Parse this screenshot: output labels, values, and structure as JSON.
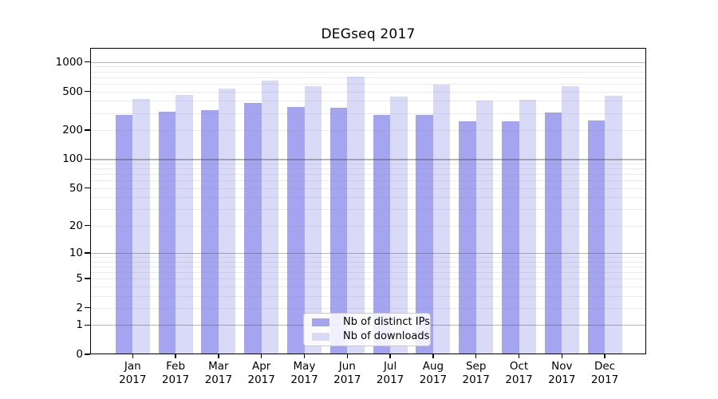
{
  "chart_data": {
    "type": "bar",
    "title": "DEGseq 2017",
    "categories": [
      "Jan",
      "Feb",
      "Mar",
      "Apr",
      "May",
      "Jun",
      "Jul",
      "Aug",
      "Sep",
      "Oct",
      "Nov",
      "Dec"
    ],
    "year_label": "2017",
    "series": [
      {
        "name": "Nb of distinct IPs",
        "color": "#a4a4f1",
        "values": [
          285,
          308,
          318,
          380,
          345,
          341,
          286,
          289,
          248,
          245,
          303,
          251
        ]
      },
      {
        "name": "Nb of downloads",
        "color": "#d9d9f8",
        "values": [
          420,
          462,
          537,
          645,
          568,
          708,
          439,
          585,
          401,
          409,
          566,
          450
        ]
      }
    ],
    "yscale": "log1p",
    "yticks": [
      0,
      1,
      2,
      5,
      10,
      20,
      50,
      100,
      200,
      500,
      1000
    ],
    "ylim": [
      0,
      1400
    ],
    "xlabel": "",
    "ylabel": "",
    "grid": true,
    "legend_position": "lower center"
  },
  "colors": {
    "background": "#ffffff",
    "bar_distinct_ips": "#a4a4f1",
    "bar_downloads": "#d9d9f8",
    "grid_major": "#9a9a9a",
    "grid_minor": "#e4e4e4",
    "axis": "#000000",
    "legend_border": "#c9c9c9"
  }
}
